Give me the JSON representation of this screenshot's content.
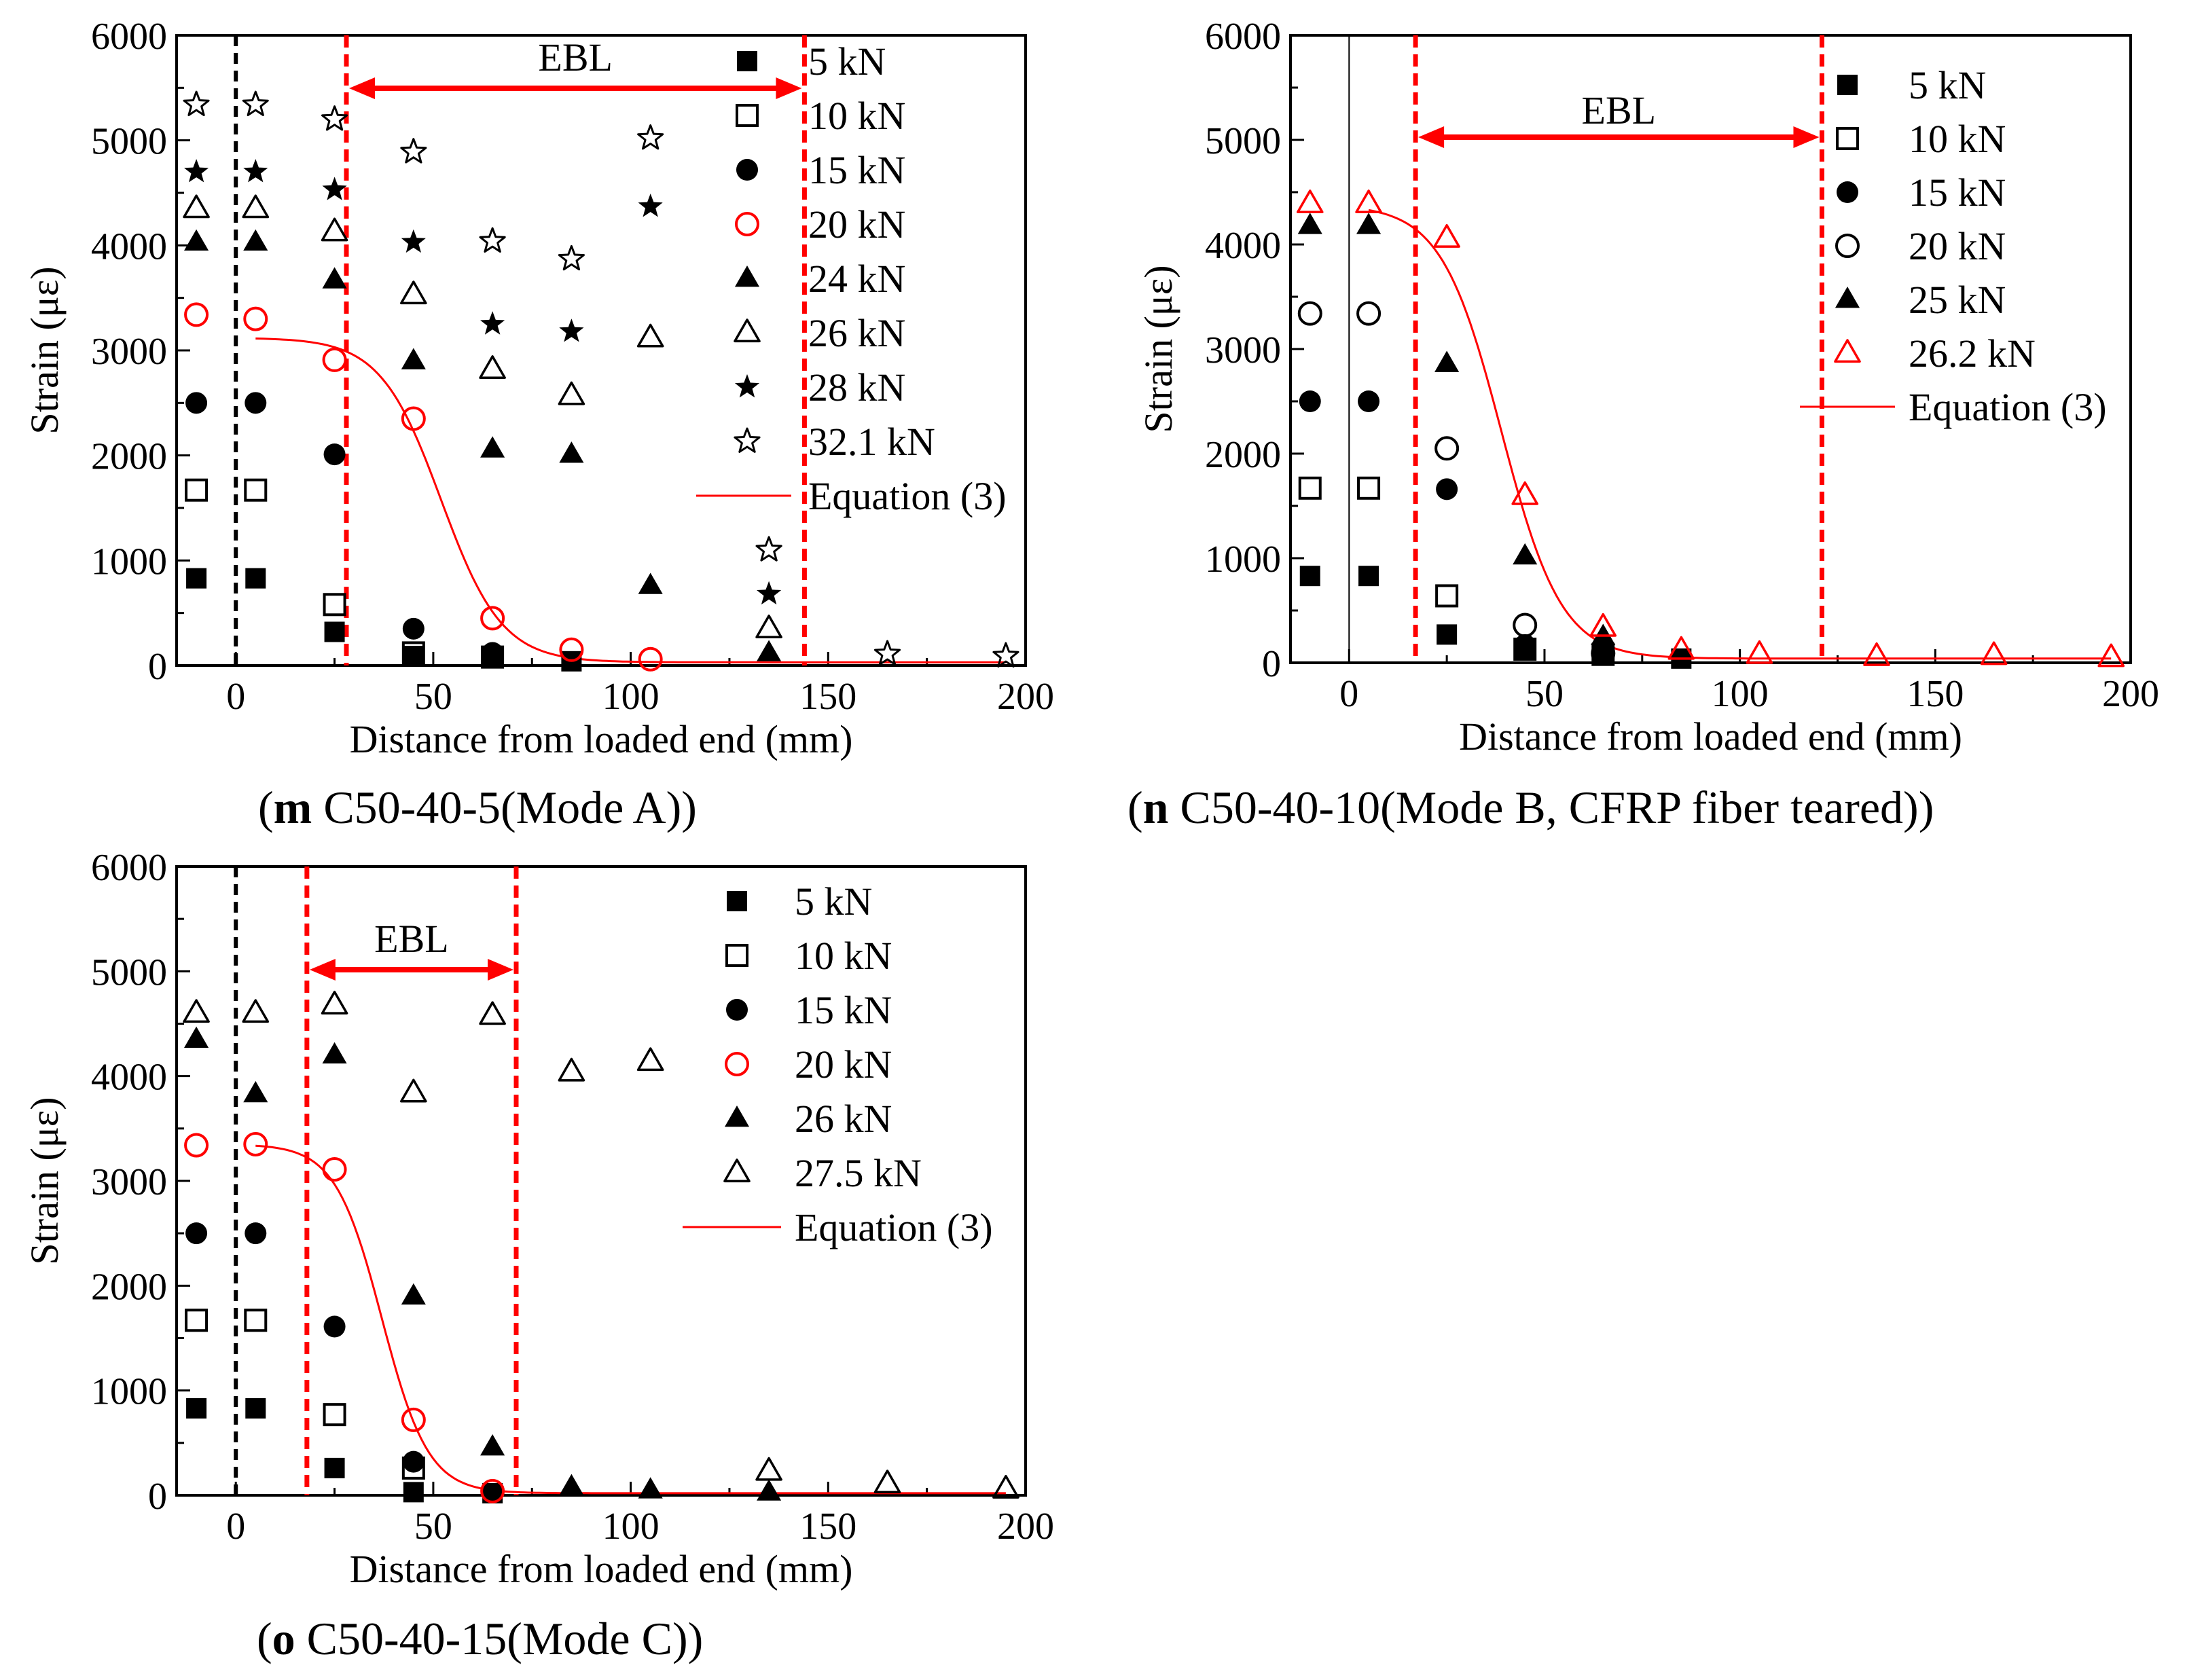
{
  "figure": {
    "captions": [
      {
        "letter": "m",
        "text": " C50-40-5(Mode A)"
      },
      {
        "letter": "n",
        "text": " C50-40-10(Mode B, CFRP fiber teared)"
      },
      {
        "letter": "o",
        "text": " C50-40-15(Mode C)"
      }
    ]
  },
  "colors": {
    "red": "#ff0000",
    "black": "#000000"
  },
  "chart_data": [
    {
      "id": "m",
      "type": "scatter",
      "title": "C50-40-5(Mode A)",
      "xlabel": "Distance from loaded end (mm)",
      "ylabel": "Strain (με)",
      "xlim": [
        -15,
        200
      ],
      "ylim": [
        0,
        6000
      ],
      "xticks": [
        0,
        50,
        100,
        150,
        200
      ],
      "yticks": [
        0,
        1000,
        2000,
        3000,
        4000,
        5000,
        6000
      ],
      "ebl": {
        "label": "EBL",
        "x_start": 28,
        "x_end": 144
      },
      "origin_line_x": 0,
      "series": [
        {
          "name": "5 kN",
          "marker": "square-filled",
          "color": "#000000",
          "x": [
            -10,
            5,
            25,
            45,
            65,
            85
          ],
          "y": [
            830,
            830,
            320,
            90,
            70,
            40
          ]
        },
        {
          "name": "10 kN",
          "marker": "square-open",
          "color": "#000000",
          "x": [
            -10,
            5,
            25,
            45,
            65
          ],
          "y": [
            1670,
            1670,
            580,
            120,
            80
          ]
        },
        {
          "name": "15 kN",
          "marker": "circle-filled",
          "color": "#000000",
          "x": [
            -10,
            5,
            25,
            45,
            65
          ],
          "y": [
            2500,
            2500,
            2010,
            350,
            120
          ]
        },
        {
          "name": "20 kN",
          "marker": "circle-open",
          "color": "#ff0000",
          "x": [
            -10,
            5,
            25,
            45,
            65,
            85,
            105
          ],
          "y": [
            3340,
            3300,
            2910,
            2350,
            450,
            150,
            60
          ]
        },
        {
          "name": "24 kN",
          "marker": "triangle-filled",
          "color": "#000000",
          "x": [
            -10,
            5,
            25,
            45,
            65,
            85,
            105,
            135
          ],
          "y": [
            4030,
            4030,
            3670,
            2900,
            2060,
            2010,
            760,
            120
          ]
        },
        {
          "name": "26 kN",
          "marker": "triangle-open",
          "color": "#000000",
          "x": [
            -10,
            5,
            25,
            45,
            65,
            85,
            105,
            135
          ],
          "y": [
            4350,
            4350,
            4130,
            3530,
            2820,
            2570,
            3120,
            350
          ]
        },
        {
          "name": "28 kN",
          "marker": "star-filled",
          "color": "#000000",
          "x": [
            -10,
            5,
            25,
            45,
            65,
            85,
            105,
            135
          ],
          "y": [
            4700,
            4700,
            4530,
            4030,
            3250,
            3180,
            4370,
            680
          ]
        },
        {
          "name": "32.1 kN",
          "marker": "star-open",
          "color": "#000000",
          "x": [
            -10,
            5,
            25,
            45,
            65,
            85,
            105,
            135,
            165,
            195
          ],
          "y": [
            5340,
            5340,
            5200,
            4890,
            4040,
            3870,
            5020,
            1100,
            110,
            90
          ]
        }
      ],
      "fit": {
        "name": "Equation (3)",
        "color": "#ff0000",
        "x_start": 5,
        "x_end": 195,
        "plateau": 3120,
        "floor": 30,
        "x0": 52,
        "k": 0.13
      }
    },
    {
      "id": "n",
      "type": "scatter",
      "title": "C50-40-10(Mode B, CFRP fiber teared)",
      "xlabel": "Distance from loaded end (mm)",
      "ylabel": "Strain (με)",
      "xlim": [
        -15,
        200
      ],
      "ylim": [
        0,
        6000
      ],
      "xticks": [
        0,
        50,
        100,
        150,
        200
      ],
      "yticks": [
        0,
        1000,
        2000,
        3000,
        4000,
        5000,
        6000
      ],
      "ebl": {
        "label": "EBL",
        "x_start": 17,
        "x_end": 121
      },
      "origin_line_x": 0,
      "series": [
        {
          "name": "5 kN",
          "marker": "square-filled",
          "color": "#000000",
          "x": [
            -10,
            5,
            25,
            45,
            65,
            85
          ],
          "y": [
            830,
            830,
            270,
            140,
            80,
            40
          ]
        },
        {
          "name": "10 kN",
          "marker": "square-open",
          "color": "#000000",
          "x": [
            -10,
            5,
            25,
            45,
            65
          ],
          "y": [
            1670,
            1670,
            640,
            130,
            80
          ]
        },
        {
          "name": "15 kN",
          "marker": "circle-filled",
          "color": "#000000",
          "x": [
            -10,
            5,
            25,
            45,
            65
          ],
          "y": [
            2500,
            2500,
            1660,
            170,
            90
          ]
        },
        {
          "name": "20 kN",
          "marker": "circle-open",
          "color": "#000000",
          "x": [
            -10,
            5,
            25,
            45,
            65
          ],
          "y": [
            3340,
            3340,
            2050,
            360,
            90
          ]
        },
        {
          "name": "25 kN",
          "marker": "triangle-filled",
          "color": "#000000",
          "x": [
            -10,
            5,
            25,
            45,
            65
          ],
          "y": [
            4180,
            4180,
            2860,
            1020,
            250
          ]
        },
        {
          "name": "26.2 kN",
          "marker": "triangle-open",
          "color": "#ff0000",
          "x": [
            -10,
            5,
            25,
            45,
            65,
            85,
            105,
            135,
            165,
            195
          ],
          "y": [
            4390,
            4390,
            4060,
            1600,
            340,
            120,
            80,
            60,
            70,
            50
          ]
        }
      ],
      "fit": {
        "name": "Equation (3)",
        "color": "#ff0000",
        "x_start": 5,
        "x_end": 195,
        "plateau": 4380,
        "floor": 40,
        "x0": 39,
        "k": 0.13
      }
    },
    {
      "id": "o",
      "type": "scatter",
      "title": "C50-40-15(Mode C)",
      "xlabel": "Distance from loaded end (mm)",
      "ylabel": "Strain (με)",
      "xlim": [
        -15,
        200
      ],
      "ylim": [
        0,
        6000
      ],
      "xticks": [
        0,
        50,
        100,
        150,
        200
      ],
      "yticks": [
        0,
        1000,
        2000,
        3000,
        4000,
        5000,
        6000
      ],
      "ebl": {
        "label": "EBL",
        "x_start": 18,
        "x_end": 71
      },
      "origin_line_x": 0,
      "series": [
        {
          "name": "5 kN",
          "marker": "square-filled",
          "color": "#000000",
          "x": [
            -10,
            5,
            25,
            45,
            65
          ],
          "y": [
            830,
            830,
            260,
            30,
            20
          ]
        },
        {
          "name": "10 kN",
          "marker": "square-open",
          "color": "#000000",
          "x": [
            -10,
            5,
            25,
            45
          ],
          "y": [
            1670,
            1670,
            770,
            260
          ]
        },
        {
          "name": "15 kN",
          "marker": "circle-filled",
          "color": "#000000",
          "x": [
            -10,
            5,
            25,
            45
          ],
          "y": [
            2500,
            2500,
            1610,
            320
          ]
        },
        {
          "name": "20 kN",
          "marker": "circle-open",
          "color": "#ff0000",
          "x": [
            -10,
            5,
            25,
            45,
            65
          ],
          "y": [
            3340,
            3350,
            3110,
            720,
            40
          ]
        },
        {
          "name": "26 kN",
          "marker": "triangle-filled",
          "color": "#000000",
          "x": [
            -10,
            5,
            25,
            45,
            65,
            85,
            105,
            135
          ],
          "y": [
            4350,
            3830,
            4200,
            1900,
            460,
            80,
            50,
            30
          ]
        },
        {
          "name": "27.5 kN",
          "marker": "triangle-open",
          "color": "#000000",
          "x": [
            -10,
            5,
            25,
            45,
            65,
            85,
            105,
            135,
            165,
            195
          ],
          "y": [
            4600,
            4600,
            4680,
            3840,
            4580,
            4040,
            4140,
            230,
            110,
            60
          ]
        }
      ],
      "fit": {
        "name": "Equation (3)",
        "color": "#ff0000",
        "x_start": 5,
        "x_end": 195,
        "plateau": 3350,
        "floor": 20,
        "x0": 37,
        "k": 0.17
      }
    }
  ]
}
